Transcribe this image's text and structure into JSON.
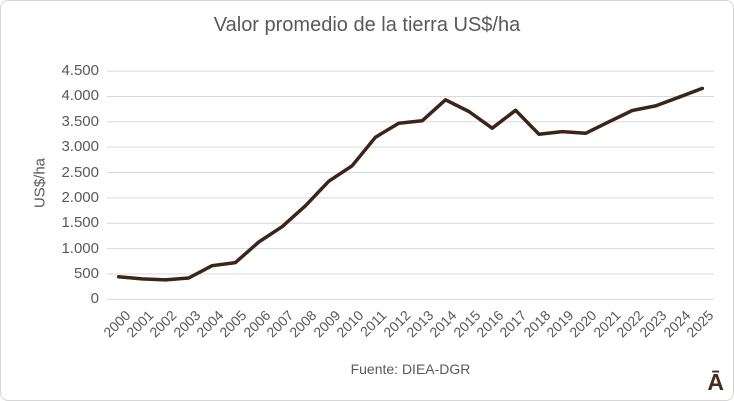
{
  "logo": {
    "glyph": "Ā"
  },
  "colors": {
    "line": "#3c2417",
    "grid": "#d9d9d9",
    "text": "#595959",
    "logo": "#4a2a1c"
  },
  "chart_data": {
    "type": "line",
    "title": "Valor promedio de la tierra US$/ha",
    "ylabel": "US$/ha",
    "xlabel": "",
    "source": "Fuente: DIEA-DGR",
    "legend": "none",
    "grid": "horizontal",
    "ylim": [
      0,
      4500
    ],
    "ytick_step": 500,
    "ytick_labels": [
      "0",
      "500",
      "1.000",
      "1.500",
      "2.000",
      "2.500",
      "3.000",
      "3.500",
      "4.000",
      "4.500"
    ],
    "categories": [
      "2000",
      "2001",
      "2002",
      "2003",
      "2004",
      "2005",
      "2006",
      "2007",
      "2008",
      "2009",
      "2010",
      "2011",
      "2012",
      "2013",
      "2014",
      "2015",
      "2016",
      "2017",
      "2018",
      "2019",
      "2020",
      "2021",
      "2022",
      "2023",
      "2024",
      "2025"
    ],
    "values": [
      448,
      404,
      385,
      422,
      664,
      725,
      1132,
      1432,
      1844,
      2329,
      2633,
      3196,
      3473,
      3519,
      3934,
      3704,
      3375,
      3726,
      3255,
      3308,
      3274,
      3501,
      3723,
      3813,
      3986,
      4159
    ]
  }
}
